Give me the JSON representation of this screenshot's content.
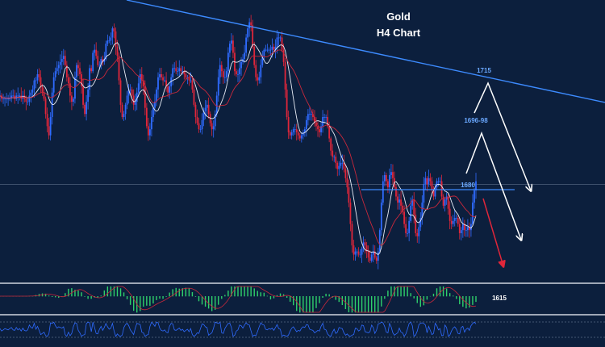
{
  "chart_data": {
    "type": "candlestick",
    "title": "Gold",
    "subtitle": "H4 Chart",
    "levels": {
      "resistance_label": "1715",
      "mid_label": "1696-98",
      "support_label": "1680",
      "indicator_label": "1615"
    },
    "trendline": {
      "from": [
        -20,
        1734
      ],
      "to": [
        150,
        1713
      ]
    },
    "horizontal_line": 1680,
    "reference_line": 1675,
    "close_series": [
      1704,
      1703,
      1703,
      1703,
      1703,
      1703,
      1703,
      1704,
      1704,
      1703,
      1704,
      1704,
      1704,
      1703,
      1704,
      1703,
      1702,
      1702,
      1704,
      1705,
      1706,
      1709,
      1709,
      1711,
      1710,
      1707,
      1705,
      1703,
      1698,
      1694,
      1691,
      1697,
      1705,
      1710,
      1712,
      1713,
      1714,
      1715,
      1716,
      1717,
      1714,
      1710,
      1708,
      1704,
      1702,
      1703,
      1710,
      1714,
      1713,
      1711,
      1707,
      1701,
      1698,
      1702,
      1706,
      1713,
      1712,
      1718,
      1719,
      1717,
      1714,
      1714,
      1716,
      1715,
      1716,
      1721,
      1722,
      1722,
      1723,
      1726,
      1725,
      1720,
      1717,
      1709,
      1701,
      1697,
      1698,
      1701,
      1704,
      1706,
      1706,
      1704,
      1701,
      1702,
      1705,
      1708,
      1711,
      1709,
      1707,
      1700,
      1694,
      1691,
      1693,
      1697,
      1700,
      1702,
      1706,
      1710,
      1711,
      1710,
      1709,
      1709,
      1707,
      1705,
      1707,
      1710,
      1713,
      1713,
      1712,
      1712,
      1713,
      1712,
      1712,
      1711,
      1710,
      1710,
      1709,
      1709,
      1706,
      1701,
      1697,
      1695,
      1693,
      1693,
      1696,
      1699,
      1700,
      1701,
      1698,
      1695,
      1693,
      1694,
      1698,
      1704,
      1710,
      1714,
      1712,
      1710,
      1710,
      1712,
      1718,
      1721,
      1722,
      1718,
      1712,
      1711,
      1711,
      1713,
      1715,
      1716,
      1718,
      1723,
      1726,
      1728,
      1727,
      1720,
      1714,
      1710,
      1709,
      1710,
      1714,
      1717,
      1719,
      1719,
      1719,
      1719,
      1719,
      1720,
      1719,
      1720,
      1723,
      1723,
      1723,
      1719,
      1715,
      1706,
      1697,
      1692,
      1691,
      1692,
      1693,
      1693,
      1692,
      1691,
      1690,
      1691,
      1692,
      1693,
      1696,
      1698,
      1698,
      1698,
      1697,
      1695,
      1694,
      1693,
      1692,
      1694,
      1697,
      1697,
      1697,
      1694,
      1690,
      1686,
      1684,
      1684,
      1682,
      1680,
      1681,
      1682,
      1682,
      1680,
      1677,
      1674,
      1669,
      1662,
      1655,
      1652,
      1653,
      1653,
      1652,
      1652,
      1654,
      1656,
      1655,
      1653,
      1651,
      1650,
      1652,
      1653,
      1651,
      1650,
      1653,
      1660,
      1669,
      1676,
      1678,
      1676,
      1674,
      1678,
      1679,
      1677,
      1674,
      1671,
      1669,
      1670,
      1668,
      1666,
      1662,
      1659,
      1659,
      1663,
      1668,
      1670,
      1665,
      1659,
      1658,
      1661,
      1664,
      1669,
      1675,
      1677,
      1675,
      1677,
      1676,
      1673,
      1671,
      1674,
      1676,
      1676,
      1676,
      1671,
      1668,
      1670,
      1671,
      1667,
      1663,
      1662,
      1663,
      1664,
      1664,
      1662,
      1659,
      1660,
      1662,
      1660,
      1660,
      1661,
      1660,
      1662,
      1669,
      1673,
      1676
    ],
    "ylim": [
      1645,
      1730
    ],
    "indicators": [
      "MACD",
      "RSI"
    ]
  },
  "colors": {
    "background": "#0c1f3d",
    "bull": "#2f6bff",
    "bear": "#e0263a",
    "trendline": "#3d8bff",
    "text": "#ffffff",
    "macd_pos": "#2fd06b",
    "macd_neg": "#2fd06b",
    "forecast_white": "#ffffff",
    "forecast_red": "#e0263a"
  }
}
